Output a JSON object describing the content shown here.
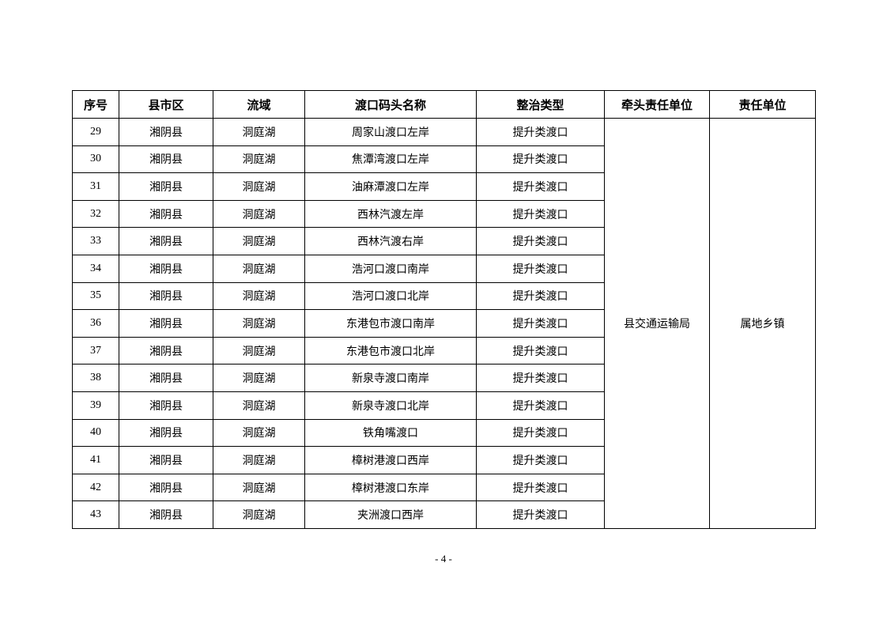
{
  "table": {
    "headers": [
      "序号",
      "县市区",
      "流域",
      "渡口码头名称",
      "整治类型",
      "牵头责任单位",
      "责任单位"
    ],
    "rows": [
      [
        "29",
        "湘阴县",
        "洞庭湖",
        "周家山渡口左岸",
        "提升类渡口"
      ],
      [
        "30",
        "湘阴县",
        "洞庭湖",
        "焦潭湾渡口左岸",
        "提升类渡口"
      ],
      [
        "31",
        "湘阴县",
        "洞庭湖",
        "油麻潭渡口左岸",
        "提升类渡口"
      ],
      [
        "32",
        "湘阴县",
        "洞庭湖",
        "西林汽渡左岸",
        "提升类渡口"
      ],
      [
        "33",
        "湘阴县",
        "洞庭湖",
        "西林汽渡右岸",
        "提升类渡口"
      ],
      [
        "34",
        "湘阴县",
        "洞庭湖",
        "浩河口渡口南岸",
        "提升类渡口"
      ],
      [
        "35",
        "湘阴县",
        "洞庭湖",
        "浩河口渡口北岸",
        "提升类渡口"
      ],
      [
        "36",
        "湘阴县",
        "洞庭湖",
        "东港包市渡口南岸",
        "提升类渡口"
      ],
      [
        "37",
        "湘阴县",
        "洞庭湖",
        "东港包市渡口北岸",
        "提升类渡口"
      ],
      [
        "38",
        "湘阴县",
        "洞庭湖",
        "新泉寺渡口南岸",
        "提升类渡口"
      ],
      [
        "39",
        "湘阴县",
        "洞庭湖",
        "新泉寺渡口北岸",
        "提升类渡口"
      ],
      [
        "40",
        "湘阴县",
        "洞庭湖",
        "铁角嘴渡口",
        "提升类渡口"
      ],
      [
        "41",
        "湘阴县",
        "洞庭湖",
        "樟树港渡口西岸",
        "提升类渡口"
      ],
      [
        "42",
        "湘阴县",
        "洞庭湖",
        "樟树港渡口东岸",
        "提升类渡口"
      ],
      [
        "43",
        "湘阴县",
        "洞庭湖",
        "夹洲渡口西岸",
        "提升类渡口"
      ]
    ],
    "lead_unit": "县交通运输局",
    "responsible_unit": "属地乡镇"
  },
  "page_number": "- 4 -"
}
